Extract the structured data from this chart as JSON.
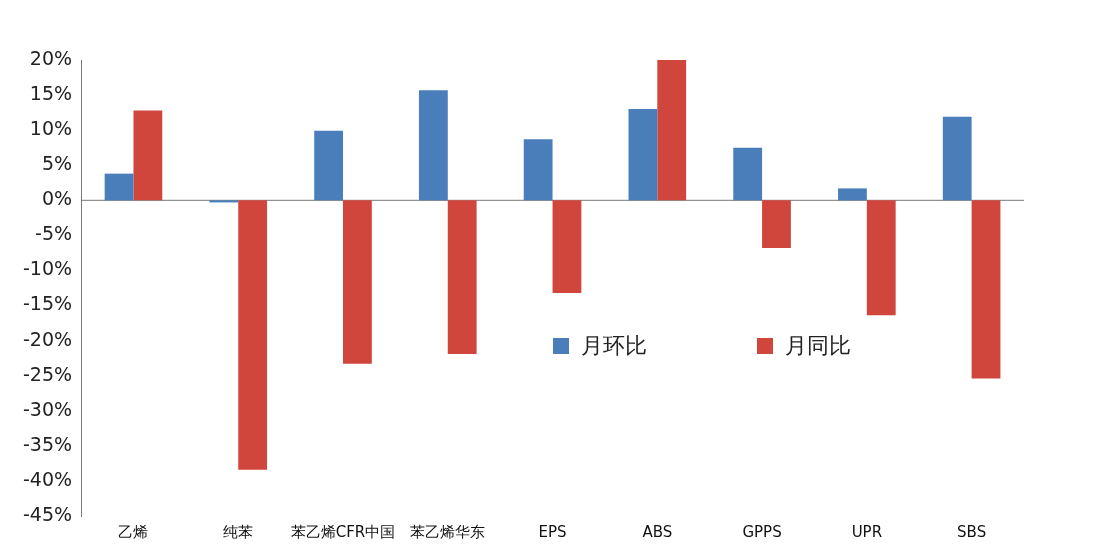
{
  "chart_data": {
    "type": "bar",
    "categories": [
      "乙烯",
      "纯苯",
      "苯乙烯CFR中国",
      "苯乙烯华东",
      "EPS",
      "ABS",
      "GPPS",
      "UPR",
      "SBS"
    ],
    "series": [
      {
        "name": "月环比",
        "color": "#4a7ebb",
        "values": [
          3.8,
          -0.3,
          9.9,
          15.7,
          8.7,
          13.0,
          7.5,
          1.7,
          11.9
        ]
      },
      {
        "name": "月同比",
        "color": "#d0463c",
        "values": [
          12.8,
          -38.4,
          -23.3,
          -21.9,
          -13.2,
          20.0,
          -6.8,
          -16.4,
          -25.4
        ]
      }
    ],
    "ylim": [
      -45,
      20
    ],
    "yticks": [
      {
        "value": -45,
        "label": "-45%"
      },
      {
        "value": -40,
        "label": "-40%"
      },
      {
        "value": -35,
        "label": "-35%"
      },
      {
        "value": -30,
        "label": "-30%"
      },
      {
        "value": -25,
        "label": "-25%"
      },
      {
        "value": -20,
        "label": "-20%"
      },
      {
        "value": -15,
        "label": "-15%"
      },
      {
        "value": -10,
        "label": "-10%"
      },
      {
        "value": -5,
        "label": "-5%"
      },
      {
        "value": 0,
        "label": "0%"
      },
      {
        "value": 5,
        "label": "5%"
      },
      {
        "value": 10,
        "label": "10%"
      },
      {
        "value": 15,
        "label": "15%"
      },
      {
        "value": 20,
        "label": "20%"
      }
    ],
    "grid": false,
    "ref_lines": [
      {
        "axis": "y",
        "value": 0,
        "color": "#777777"
      }
    ],
    "legend": "bottom right"
  }
}
